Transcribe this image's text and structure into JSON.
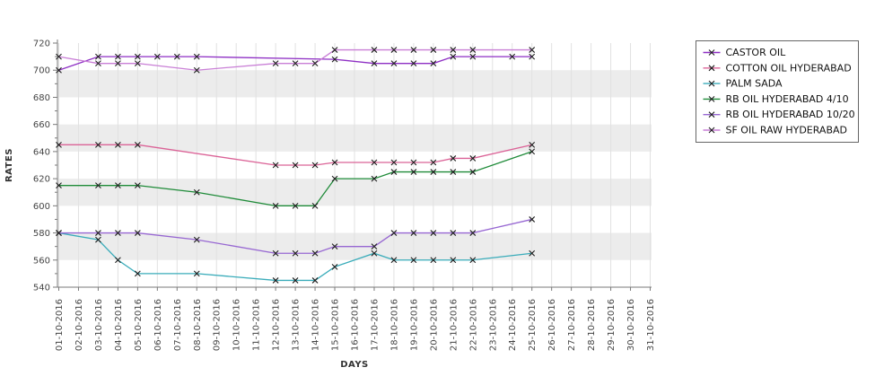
{
  "chart_data": {
    "type": "line",
    "title": "",
    "xlabel": "DAYS",
    "ylabel": "RATES",
    "ylim": [
      540,
      720
    ],
    "ytick_step": 20,
    "grid": true,
    "legend_position": "top-right",
    "band_color": "#ececec",
    "gridline_color": "#e1e1e1",
    "axis_color": "#7a7a7a",
    "tick_text_color": "#444444",
    "marker_color": "#1c1c1c",
    "x_tick_labels": [
      "01-10-2016",
      "02-10-2016",
      "03-10-2016",
      "04-10-2016",
      "05-10-2016",
      "06-10-2016",
      "07-10-2016",
      "08-10-2016",
      "09-10-2016",
      "10-10-2016",
      "11-10-2016",
      "12-10-2016",
      "13-10-2016",
      "14-10-2016",
      "15-10-2016",
      "16-10-2016",
      "17-10-2016",
      "18-10-2016",
      "19-10-2016",
      "20-10-2016",
      "21-10-2016",
      "22-10-2016",
      "23-10-2016",
      "24-10-2016",
      "25-10-2016",
      "26-10-2016",
      "27-10-2016",
      "28-10-2016",
      "29-10-2016",
      "30-10-2016",
      "31-10-2016"
    ],
    "series": [
      {
        "name": "CASTOR OIL",
        "color": "#8e2fc4",
        "marker": "x",
        "points": [
          [
            1,
            700
          ],
          [
            3,
            710
          ],
          [
            4,
            710
          ],
          [
            5,
            710
          ],
          [
            6,
            710
          ],
          [
            7,
            710
          ],
          [
            8,
            710
          ],
          [
            15,
            708
          ],
          [
            17,
            705
          ],
          [
            18,
            705
          ],
          [
            19,
            705
          ],
          [
            20,
            705
          ],
          [
            21,
            710
          ],
          [
            22,
            710
          ],
          [
            24,
            710
          ],
          [
            25,
            710
          ]
        ]
      },
      {
        "name": "COTTON OIL HYDERABAD",
        "color": "#db6397",
        "marker": "x",
        "points": [
          [
            1,
            645
          ],
          [
            3,
            645
          ],
          [
            4,
            645
          ],
          [
            5,
            645
          ],
          [
            12,
            630
          ],
          [
            13,
            630
          ],
          [
            14,
            630
          ],
          [
            15,
            632
          ],
          [
            17,
            632
          ],
          [
            18,
            632
          ],
          [
            19,
            632
          ],
          [
            20,
            632
          ],
          [
            21,
            635
          ],
          [
            22,
            635
          ],
          [
            25,
            645
          ]
        ]
      },
      {
        "name": "PALM SADA",
        "color": "#3aacba",
        "marker": "x",
        "points": [
          [
            1,
            580
          ],
          [
            3,
            575
          ],
          [
            4,
            560
          ],
          [
            5,
            550
          ],
          [
            8,
            550
          ],
          [
            12,
            545
          ],
          [
            13,
            545
          ],
          [
            14,
            545
          ],
          [
            15,
            555
          ],
          [
            17,
            565
          ],
          [
            18,
            560
          ],
          [
            19,
            560
          ],
          [
            20,
            560
          ],
          [
            21,
            560
          ],
          [
            22,
            560
          ],
          [
            25,
            565
          ]
        ]
      },
      {
        "name": "RB OIL HYDERABAD  4/10",
        "color": "#1f8b39",
        "marker": "x",
        "points": [
          [
            1,
            615
          ],
          [
            3,
            615
          ],
          [
            4,
            615
          ],
          [
            5,
            615
          ],
          [
            8,
            610
          ],
          [
            12,
            600
          ],
          [
            13,
            600
          ],
          [
            14,
            600
          ],
          [
            15,
            620
          ],
          [
            17,
            620
          ],
          [
            18,
            625
          ],
          [
            19,
            625
          ],
          [
            20,
            625
          ],
          [
            21,
            625
          ],
          [
            22,
            625
          ],
          [
            25,
            640
          ]
        ]
      },
      {
        "name": "RB OIL HYDERABAD 10/20",
        "color": "#9767d2",
        "marker": "x",
        "points": [
          [
            1,
            580
          ],
          [
            3,
            580
          ],
          [
            4,
            580
          ],
          [
            5,
            580
          ],
          [
            8,
            575
          ],
          [
            12,
            565
          ],
          [
            13,
            565
          ],
          [
            14,
            565
          ],
          [
            15,
            570
          ],
          [
            17,
            570
          ],
          [
            18,
            580
          ],
          [
            19,
            580
          ],
          [
            20,
            580
          ],
          [
            21,
            580
          ],
          [
            22,
            580
          ],
          [
            25,
            590
          ]
        ]
      },
      {
        "name": "SF OIL RAW HYDERABAD",
        "color": "#c97fd6",
        "marker": "x",
        "points": [
          [
            1,
            710
          ],
          [
            3,
            705
          ],
          [
            4,
            705
          ],
          [
            5,
            705
          ],
          [
            8,
            700
          ],
          [
            12,
            705
          ],
          [
            13,
            705
          ],
          [
            14,
            705
          ],
          [
            15,
            715
          ],
          [
            17,
            715
          ],
          [
            18,
            715
          ],
          [
            19,
            715
          ],
          [
            20,
            715
          ],
          [
            21,
            715
          ],
          [
            22,
            715
          ],
          [
            25,
            715
          ]
        ]
      }
    ]
  }
}
